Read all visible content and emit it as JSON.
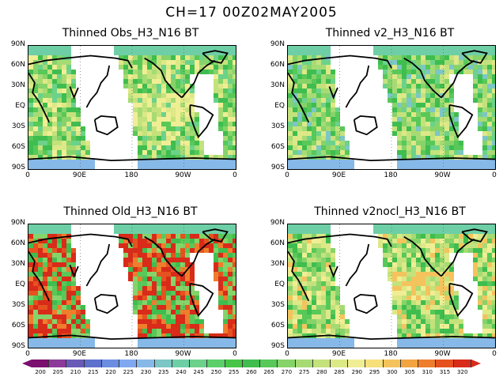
{
  "title": "CH=17   00Z02MAY2005",
  "latitude_labels": [
    "90N",
    "60N",
    "30N",
    "EQ",
    "30S",
    "60S",
    "90S"
  ],
  "longitude_labels": [
    "0",
    "90E",
    "180",
    "90W",
    "0"
  ],
  "panels": [
    {
      "title": "Thinned Obs_H3_N16 BT",
      "style": "obs"
    },
    {
      "title": "Thinned v2_H3_N16 BT",
      "style": "v2"
    },
    {
      "title": "Thinned Old_H3_N16 BT",
      "style": "old"
    },
    {
      "title": "Thinned v2nocl_H3_N16 BT",
      "style": "nocl"
    }
  ],
  "colorbar": {
    "labels": [
      "200",
      "205",
      "210",
      "215",
      "220",
      "225",
      "230",
      "235",
      "240",
      "245",
      "250",
      "255",
      "260",
      "265",
      "270",
      "275",
      "280",
      "285",
      "290",
      "295",
      "300",
      "305",
      "310",
      "315",
      "320"
    ],
    "colors": [
      "#7a0f6f",
      "#8c3a9a",
      "#6a5ab8",
      "#5c70cc",
      "#6b8ee0",
      "#7fa8f0",
      "#86b9e8",
      "#7cc6c6",
      "#6ecfa6",
      "#6cd28a",
      "#5ccf6a",
      "#47c547",
      "#3fbd4f",
      "#58c858",
      "#86d36a",
      "#a6db74",
      "#c4e27c",
      "#dde887",
      "#f0ee94",
      "#f7df7a",
      "#f5c35c",
      "#f2a440",
      "#ee7d2c",
      "#e5521f",
      "#d82b1a"
    ]
  }
}
